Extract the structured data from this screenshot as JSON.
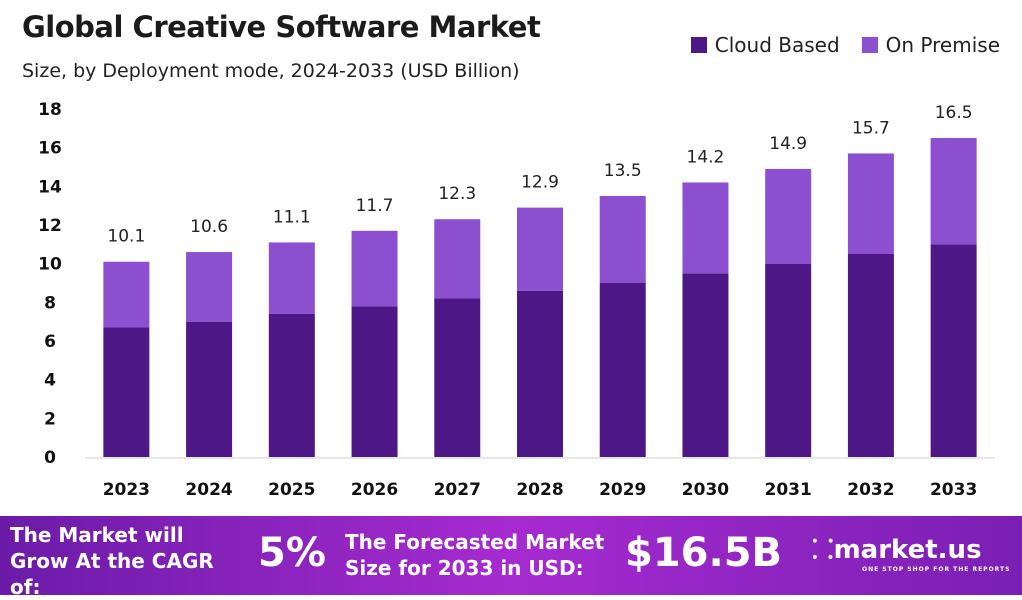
{
  "chart_data": {
    "type": "bar",
    "stacked": true,
    "title": "Global Creative Software Market",
    "subtitle": "Size, by Deployment mode, 2024-2033 (USD Billion)",
    "categories": [
      "2023",
      "2024",
      "2025",
      "2026",
      "2027",
      "2028",
      "2029",
      "2030",
      "2031",
      "2032",
      "2033"
    ],
    "series": [
      {
        "name": "Cloud Based",
        "color": "#4e1786",
        "values": [
          6.7,
          7.0,
          7.4,
          7.8,
          8.2,
          8.6,
          9.0,
          9.5,
          10.0,
          10.5,
          11.0
        ]
      },
      {
        "name": "On Premise",
        "color": "#8b4fd0",
        "values": [
          3.4,
          3.6,
          3.7,
          3.9,
          4.1,
          4.3,
          4.5,
          4.7,
          4.9,
          5.2,
          5.5
        ]
      }
    ],
    "totals": [
      "10.1",
      "10.6",
      "11.1",
      "11.7",
      "12.3",
      "12.9",
      "13.5",
      "14.2",
      "14.9",
      "15.7",
      "16.5"
    ],
    "yticks": [
      0,
      2,
      4,
      6,
      8,
      10,
      12,
      14,
      16,
      18
    ],
    "ylim": [
      0,
      18
    ],
    "grid": false,
    "legend_position": "top-right"
  },
  "banner": {
    "cagr_label": "The Market will Grow At the CAGR of:",
    "cagr_value": "5%",
    "forecast_label": "The Forecasted Market Size for 2033 in USD:",
    "forecast_value": "$16.5B",
    "logo": "market.us",
    "logo_tagline": "ONE STOP SHOP FOR THE REPORTS"
  }
}
